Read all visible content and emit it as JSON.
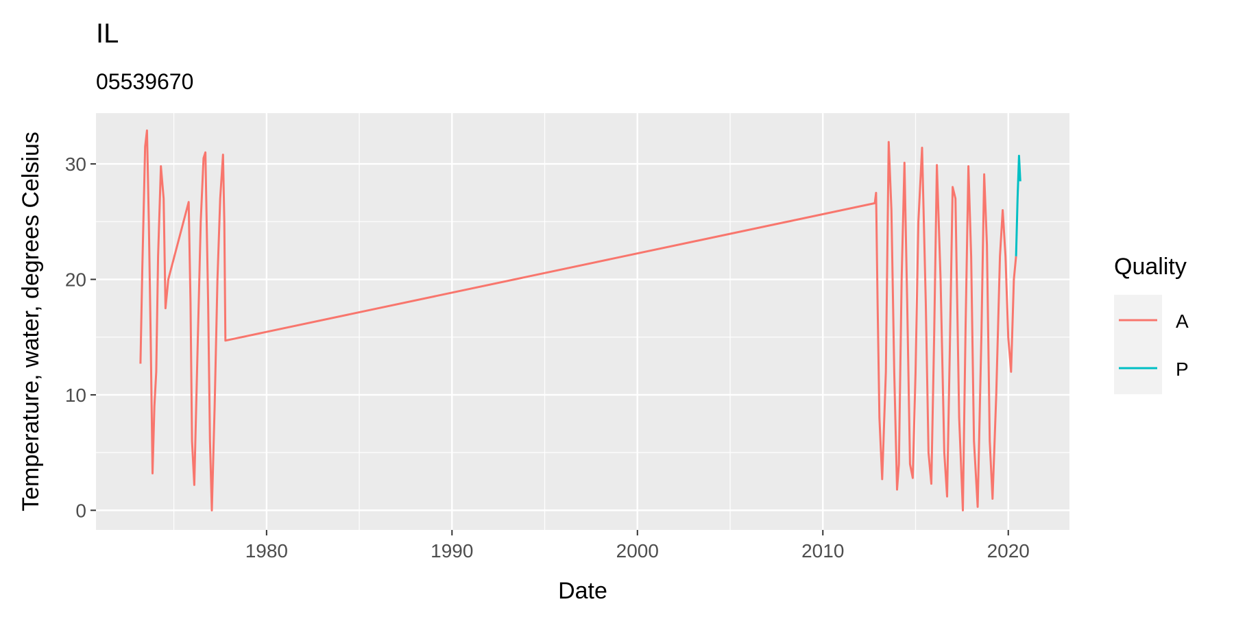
{
  "chart_data": {
    "type": "line",
    "title": "IL",
    "subtitle": "05539670",
    "xlabel": "Date",
    "ylabel": "Temperature, water, degrees Celsius",
    "xlim": [
      1970.8,
      2023.3
    ],
    "ylim": [
      -1.7,
      34.4
    ],
    "x_ticks": [
      1980,
      1990,
      2000,
      2010,
      2020
    ],
    "x_tick_labels": [
      "1980",
      "1990",
      "2000",
      "2010",
      "2020"
    ],
    "y_ticks": [
      0,
      10,
      20,
      30
    ],
    "y_tick_labels": [
      "0",
      "10",
      "20",
      "30"
    ],
    "grid": true,
    "panel_background": "#ebebeb",
    "legend": {
      "title": "Quality",
      "position": "right",
      "entries": [
        {
          "label": "A",
          "color": "#f8766d"
        },
        {
          "label": "P",
          "color": "#00bfc4"
        }
      ]
    },
    "series": [
      {
        "name": "A",
        "color": "#f8766d",
        "x": [
          1973.2,
          1973.3,
          1973.45,
          1973.55,
          1973.65,
          1973.75,
          1973.85,
          1973.95,
          1974.05,
          1974.15,
          1974.3,
          1974.45,
          1974.55,
          1974.7,
          1975.8,
          1975.9,
          1975.98,
          1976.1,
          1976.25,
          1976.45,
          1976.6,
          1976.7,
          1976.85,
          1976.95,
          1977.05,
          1977.2,
          1977.35,
          1977.5,
          1977.65,
          1977.72,
          1977.78,
          2012.8,
          2012.87,
          2012.95,
          2013.05,
          2013.2,
          2013.4,
          2013.55,
          2013.7,
          2013.85,
          2014.0,
          2014.1,
          2014.25,
          2014.4,
          2014.55,
          2014.7,
          2014.85,
          2015.0,
          2015.15,
          2015.35,
          2015.55,
          2015.7,
          2015.85,
          2016.0,
          2016.15,
          2016.35,
          2016.55,
          2016.7,
          2016.85,
          2017.0,
          2017.15,
          2017.35,
          2017.55,
          2017.7,
          2017.85,
          2018.0,
          2018.15,
          2018.35,
          2018.55,
          2018.7,
          2018.85,
          2019.0,
          2019.15,
          2019.35,
          2019.55,
          2019.7,
          2019.85,
          2020.0,
          2020.15,
          2020.3,
          2020.42
        ],
        "y": [
          12.7,
          21.0,
          31.5,
          32.9,
          25.0,
          15.0,
          3.2,
          9.0,
          12.0,
          22.0,
          29.8,
          27.0,
          17.5,
          20.0,
          26.7,
          18.0,
          6.0,
          2.2,
          12.0,
          25.0,
          30.5,
          31.0,
          18.0,
          6.0,
          0.0,
          9.0,
          20.0,
          27.0,
          30.8,
          25.0,
          14.7,
          26.6,
          27.5,
          18.0,
          8.0,
          2.7,
          12.0,
          31.9,
          26.0,
          12.0,
          1.8,
          4.0,
          20.0,
          30.1,
          18.0,
          4.0,
          2.8,
          12.0,
          25.0,
          31.4,
          18.0,
          5.0,
          2.3,
          15.0,
          29.9,
          20.0,
          5.0,
          1.2,
          14.0,
          28.0,
          27.0,
          8.0,
          0.0,
          16.0,
          29.8,
          22.0,
          6.0,
          0.3,
          15.0,
          29.1,
          23.0,
          6.0,
          1.0,
          10.0,
          22.0,
          26.0,
          22.0,
          15.0,
          12.0,
          20.0,
          22.0
        ]
      },
      {
        "name": "P",
        "color": "#00bfc4",
        "x": [
          2020.42,
          2020.5,
          2020.58,
          2020.65
        ],
        "y": [
          22.0,
          27.0,
          30.7,
          28.5
        ]
      }
    ]
  }
}
